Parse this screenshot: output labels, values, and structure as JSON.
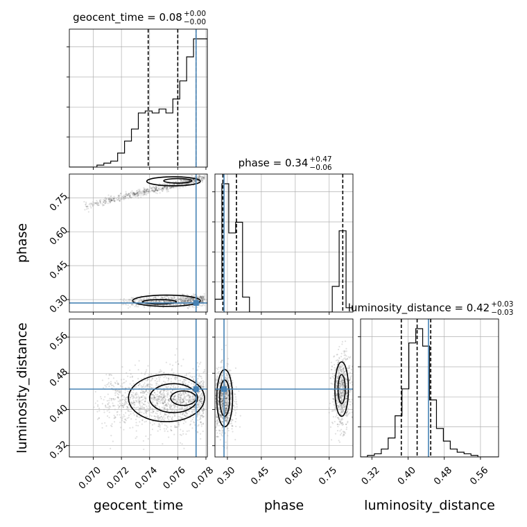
{
  "chart_data": {
    "type": "corner",
    "parameters": [
      "geocent_time",
      "phase",
      "luminosity_distance"
    ],
    "axis_labels": [
      "geocent_time",
      "phase",
      "luminosity_distance"
    ],
    "truths": {
      "geocent_time": 0.0773,
      "phase": 0.285,
      "luminosity_distance": 0.445
    },
    "titles": [
      {
        "param": "geocent_time",
        "text": "geocent_time = 0.08",
        "sup": "+0.00",
        "sub": "−0.00"
      },
      {
        "param": "phase",
        "text": "phase = 0.34",
        "sup": "+0.47",
        "sub": "−0.06"
      },
      {
        "param": "luminosity_distance",
        "text": "luminosity_distance = 0.42",
        "sup": "+0.03",
        "sub": "−0.03"
      }
    ],
    "ranges": {
      "geocent_time": [
        0.0683,
        0.0781
      ],
      "phase": [
        0.245,
        0.855
      ],
      "luminosity_distance": [
        0.295,
        0.6
      ]
    },
    "ticks": {
      "geocent_time": [
        "0.070",
        "0.072",
        "0.074",
        "0.076",
        "0.078"
      ],
      "phase": [
        "0.30",
        "0.45",
        "0.60",
        "0.75"
      ],
      "luminosity_distance": [
        "0.32",
        "0.40",
        "0.48",
        "0.56"
      ]
    },
    "quantiles": {
      "geocent_time": [
        0.0739,
        0.076,
        0.0773
      ],
      "phase": [
        0.28,
        0.34,
        0.81
      ],
      "luminosity_distance": [
        0.385,
        0.42,
        0.45
      ]
    },
    "histograms": {
      "geocent_time": {
        "edges_start": 0.0683,
        "bin_width": 0.00049,
        "counts": [
          0,
          0,
          0,
          0,
          1,
          2,
          3,
          7,
          13,
          19,
          27,
          28,
          27,
          29,
          27,
          34,
          43,
          55,
          64,
          64
        ]
      },
      "phase": {
        "edges_start": 0.245,
        "bin_width": 0.0305,
        "counts": [
          6,
          60,
          37,
          42,
          7,
          0,
          0,
          0,
          0,
          0,
          0,
          0,
          0,
          0,
          0,
          0,
          0,
          12,
          38,
          2
        ]
      },
      "luminosity_distance": {
        "edges_start": 0.295,
        "bin_width": 0.01525,
        "counts": [
          0,
          1,
          2,
          5,
          12,
          26,
          43,
          72,
          81,
          70,
          36,
          18,
          10,
          5,
          3,
          2,
          1,
          0,
          0,
          0
        ]
      }
    },
    "grid": true
  }
}
